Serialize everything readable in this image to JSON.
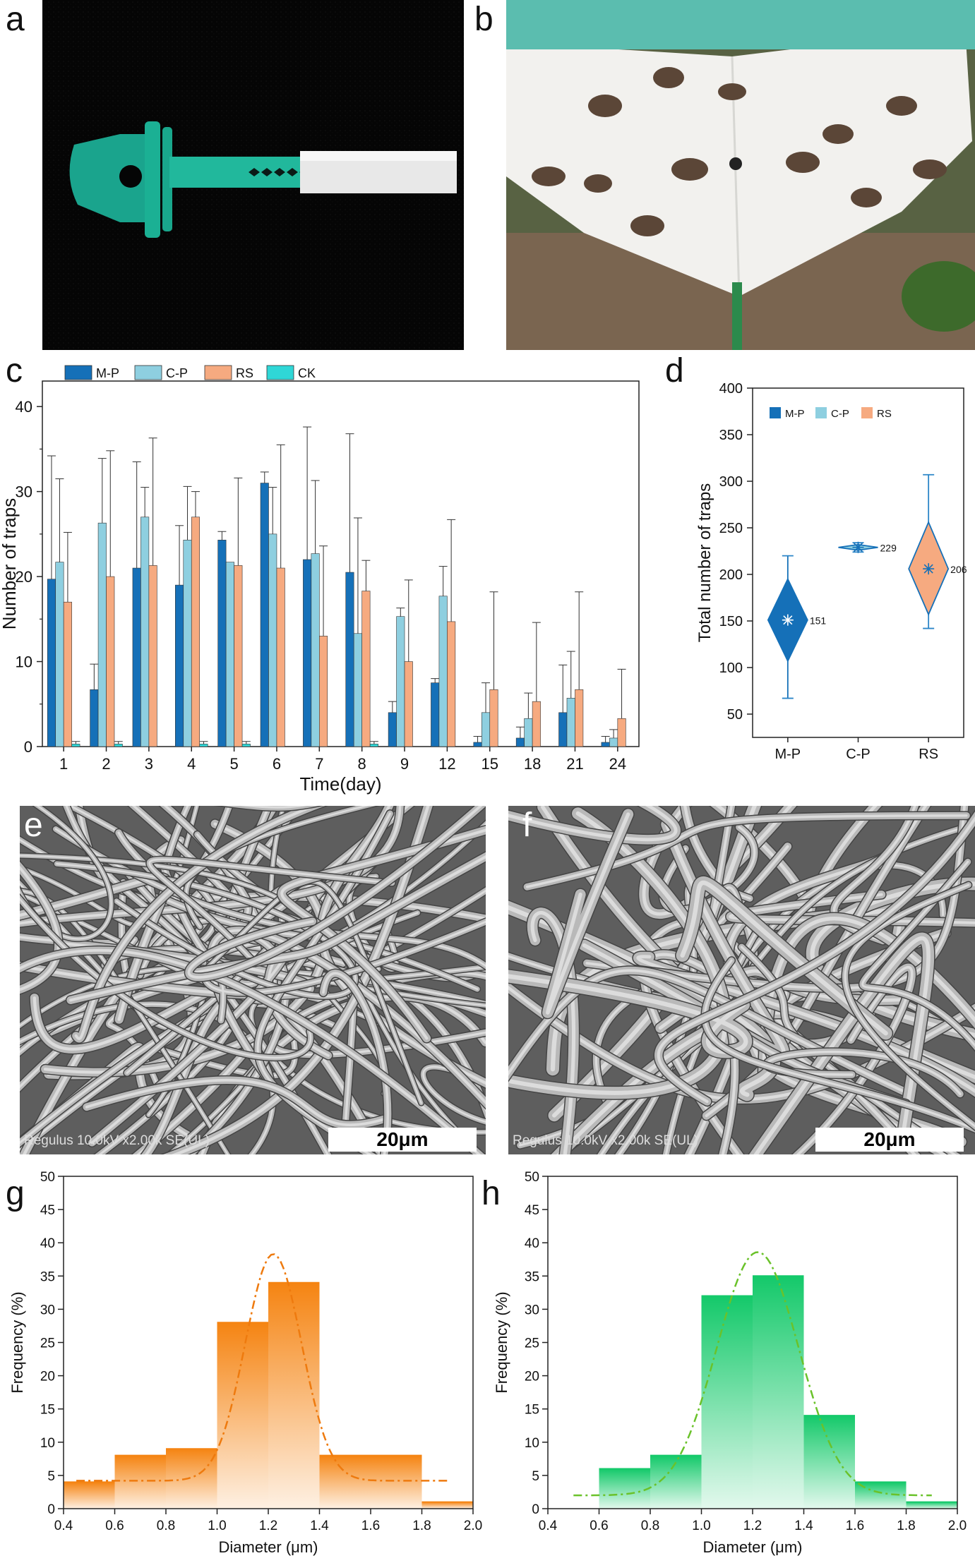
{
  "panels": {
    "a": "a",
    "b": "b",
    "c": "c",
    "d": "d",
    "e": "e",
    "f": "f",
    "g": "g",
    "h": "h"
  },
  "sem": {
    "e": {
      "caption": "Regulus 10.0kV x2.00k SE(UL)",
      "scale": "20μm"
    },
    "f": {
      "caption": "Regulus 10.0kV x2.00k SE(UL)",
      "scale": "20μm"
    }
  },
  "colors": {
    "MP": "#1570b8",
    "CP": "#8ecfe0",
    "RS": "#f6aa80",
    "CK": "#2fd7d7",
    "orange": "#f58412",
    "green": "#14c96a"
  },
  "chart_data": [
    {
      "id": "c",
      "type": "bar",
      "xlabel": "Time(day)",
      "ylabel": "Number of traps",
      "ylim": [
        0,
        43
      ],
      "yticks": [
        0,
        10,
        20,
        30,
        40
      ],
      "legend_position": "top-left",
      "categories": [
        "1",
        "2",
        "3",
        "4",
        "5",
        "6",
        "7",
        "8",
        "9",
        "12",
        "15",
        "18",
        "21",
        "24"
      ],
      "series": [
        {
          "name": "M-P",
          "values": [
            19.7,
            6.7,
            21,
            19,
            24.3,
            31,
            22,
            20.5,
            4,
            7.5,
            0.5,
            1,
            4,
            0.5
          ],
          "errors": [
            14.5,
            3,
            12.5,
            7,
            1,
            1.3,
            15.6,
            16.3,
            1.3,
            0.5,
            0.7,
            1.3,
            5.6,
            0.7
          ]
        },
        {
          "name": "C-P",
          "values": [
            21.7,
            26.3,
            27,
            24.3,
            21.7,
            25,
            22.7,
            13.3,
            15.3,
            17.7,
            4,
            3.3,
            5.7,
            1
          ],
          "errors": [
            9.8,
            7.6,
            3.5,
            6.3,
            0,
            5.5,
            8.6,
            13.6,
            1,
            3.5,
            3.5,
            3,
            5.5,
            1
          ]
        },
        {
          "name": "RS",
          "values": [
            17,
            20,
            21.3,
            27,
            21.3,
            21,
            13,
            18.3,
            10,
            14.7,
            6.7,
            5.3,
            6.7,
            3.3
          ],
          "errors": [
            8.2,
            14.8,
            15,
            3,
            10.3,
            14.5,
            10.6,
            3.6,
            9.6,
            12,
            11.5,
            9.3,
            11.5,
            5.8
          ]
        },
        {
          "name": "CK",
          "values": [
            0.3,
            0.3,
            0,
            0.3,
            0.3,
            0,
            0,
            0.3,
            0,
            0,
            0,
            0,
            0,
            0
          ],
          "errors": [
            0.3,
            0.3,
            0,
            0.3,
            0.3,
            0,
            0,
            0.3,
            0,
            0,
            0,
            0,
            0,
            0
          ]
        }
      ]
    },
    {
      "id": "d",
      "type": "violin",
      "ylabel": "Total number of traps",
      "ylim": [
        25,
        400
      ],
      "yticks": [
        50,
        100,
        150,
        200,
        250,
        300,
        350,
        400
      ],
      "legend_position": "top-left",
      "categories": [
        "M-P",
        "C-P",
        "RS"
      ],
      "series": [
        {
          "name": "M-P",
          "mean": 151,
          "mean_label": "151",
          "min": 67,
          "max": 220,
          "q1": 107,
          "q3": 195
        },
        {
          "name": "C-P",
          "mean": 229,
          "mean_label": "229",
          "min": 224,
          "max": 234,
          "q1": 226,
          "q3": 232
        },
        {
          "name": "RS",
          "mean": 206,
          "mean_label": "206",
          "min": 142,
          "max": 307,
          "q1": 157,
          "q3": 256
        }
      ]
    },
    {
      "id": "g",
      "type": "histogram",
      "xlabel": "Diameter (μm)",
      "ylabel": "Frequency (%)",
      "xlim": [
        0.4,
        2.0
      ],
      "ylim": [
        0,
        50
      ],
      "xticks": [
        0.4,
        0.6,
        0.8,
        1.0,
        1.2,
        1.4,
        1.6,
        1.8,
        2.0
      ],
      "yticks": [
        0,
        5,
        10,
        15,
        20,
        25,
        30,
        35,
        40,
        45,
        50
      ],
      "bins": [
        0.4,
        0.6,
        0.8,
        1.0,
        1.2,
        1.4,
        1.6,
        1.8,
        2.0
      ],
      "values": [
        4,
        8,
        9,
        28,
        34,
        8,
        8,
        1
      ],
      "fit": {
        "type": "gaussian",
        "mean": 1.22,
        "sd": 0.11,
        "peak": 38.3,
        "baseline": 4.2,
        "range": [
          0.45,
          1.9
        ]
      }
    },
    {
      "id": "h",
      "type": "histogram",
      "xlabel": "Diameter (μm)",
      "ylabel": "Frequency (%)",
      "xlim": [
        0.4,
        2.0
      ],
      "ylim": [
        0,
        50
      ],
      "xticks": [
        0.4,
        0.6,
        0.8,
        1.0,
        1.2,
        1.4,
        1.6,
        1.8,
        2.0
      ],
      "yticks": [
        0,
        5,
        10,
        15,
        20,
        25,
        30,
        35,
        40,
        45,
        50
      ],
      "bins": [
        0.6,
        0.8,
        1.0,
        1.2,
        1.4,
        1.6,
        1.8,
        2.0
      ],
      "values": [
        6,
        8,
        32,
        35,
        14,
        4,
        1
      ],
      "fit": {
        "type": "gaussian",
        "mean": 1.22,
        "sd": 0.16,
        "peak": 38.6,
        "baseline": 2,
        "range": [
          0.5,
          1.9
        ]
      }
    }
  ]
}
